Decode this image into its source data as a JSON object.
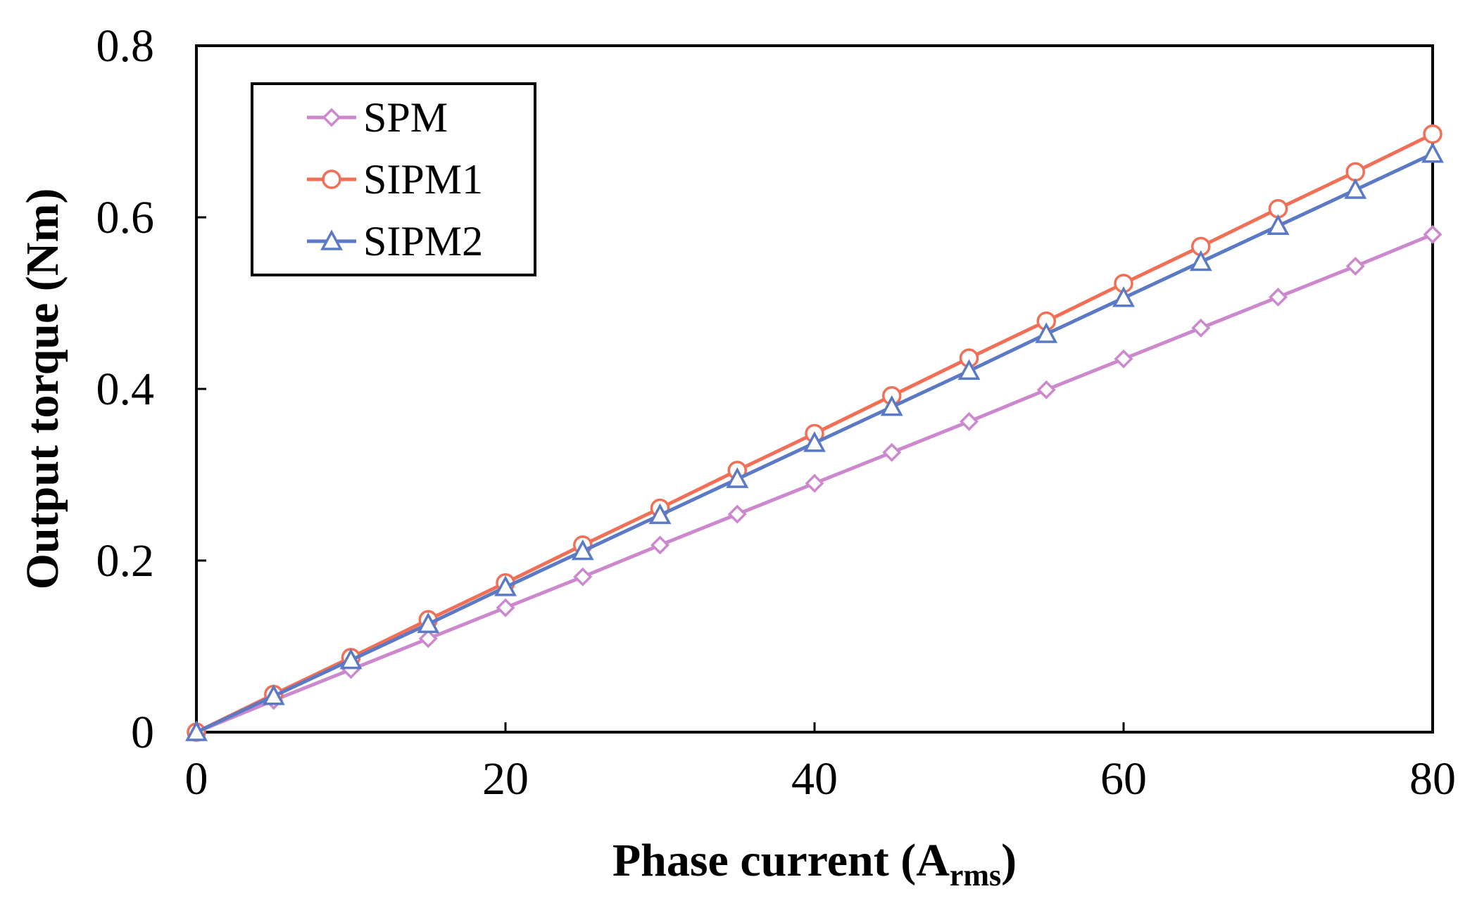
{
  "chart_data": {
    "type": "line",
    "title": "",
    "xlabel": "Phase current (A",
    "xlabel_sub": "rms",
    "xlabel_close": ")",
    "ylabel": "Output torque (Nm)",
    "xlim": [
      0,
      80
    ],
    "ylim": [
      0,
      0.8
    ],
    "xticks": [
      0,
      20,
      40,
      60,
      80
    ],
    "xtick_labels": [
      "0",
      "20",
      "40",
      "60",
      "80"
    ],
    "yticks": [
      0,
      0.2,
      0.4,
      0.6,
      0.8
    ],
    "ytick_labels": [
      "0",
      "0.2",
      "0.4",
      "0.6",
      "0.8"
    ],
    "grid": false,
    "legend_position": "top-left",
    "x": [
      0,
      5,
      10,
      15,
      20,
      25,
      30,
      35,
      40,
      45,
      50,
      55,
      60,
      65,
      70,
      75,
      80
    ],
    "series": [
      {
        "name": "SPM",
        "color": "#cc88cc",
        "marker": "diamond",
        "values": [
          0,
          0.037,
          0.073,
          0.109,
          0.145,
          0.181,
          0.218,
          0.254,
          0.29,
          0.326,
          0.362,
          0.399,
          0.435,
          0.471,
          0.507,
          0.543,
          0.58
        ]
      },
      {
        "name": "SIPM1",
        "color": "#f26f57",
        "marker": "circle",
        "values": [
          0,
          0.044,
          0.087,
          0.131,
          0.174,
          0.218,
          0.261,
          0.305,
          0.348,
          0.392,
          0.436,
          0.479,
          0.523,
          0.566,
          0.61,
          0.653,
          0.697
        ]
      },
      {
        "name": "SIPM2",
        "color": "#5b79c4",
        "marker": "triangle",
        "values": [
          0,
          0.042,
          0.084,
          0.126,
          0.169,
          0.211,
          0.253,
          0.295,
          0.337,
          0.379,
          0.421,
          0.464,
          0.506,
          0.548,
          0.59,
          0.632,
          0.674
        ]
      }
    ]
  }
}
